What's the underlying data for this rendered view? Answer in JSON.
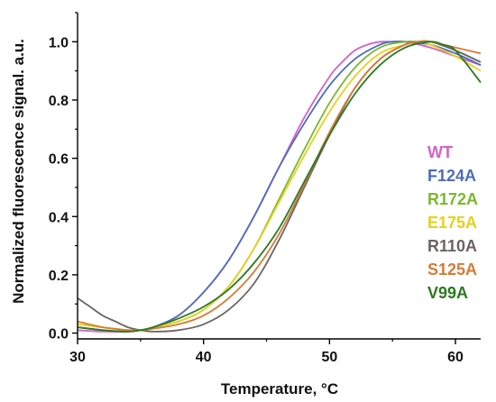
{
  "chart_data": {
    "type": "line",
    "xlabel": "Temperature, °C",
    "ylabel": "Normalized fluorescence signal. a.u.",
    "xlim": [
      30,
      62
    ],
    "ylim": [
      -0.02,
      1.1
    ],
    "x_ticks": [
      "30",
      "40",
      "50",
      "60"
    ],
    "y_ticks": [
      "0.0",
      "0.2",
      "0.4",
      "0.6",
      "0.8",
      "1.0"
    ],
    "grid": false,
    "legend_position": "right",
    "series": [
      {
        "name": "WT",
        "color": "#d362c6",
        "x": [
          30,
          32,
          34,
          35,
          36,
          38,
          40,
          42,
          44,
          46,
          48,
          50,
          51,
          52,
          53,
          54,
          55,
          56,
          58,
          60,
          62
        ],
        "y": [
          0.01,
          0.005,
          0.005,
          0.01,
          0.02,
          0.06,
          0.14,
          0.25,
          0.4,
          0.57,
          0.74,
          0.88,
          0.93,
          0.97,
          0.99,
          1.0,
          1.0,
          1.0,
          0.98,
          0.95,
          0.92
        ]
      },
      {
        "name": "F124A",
        "color": "#4f6bbd",
        "x": [
          30,
          32,
          34,
          35,
          36,
          38,
          40,
          42,
          44,
          46,
          48,
          50,
          52,
          54,
          55,
          56,
          58,
          60,
          62
        ],
        "y": [
          0.02,
          0.01,
          0.005,
          0.01,
          0.02,
          0.06,
          0.14,
          0.25,
          0.4,
          0.57,
          0.72,
          0.85,
          0.94,
          0.99,
          1.0,
          1.0,
          0.99,
          0.96,
          0.92
        ]
      },
      {
        "name": "R172A",
        "color": "#7ab82f",
        "x": [
          30,
          32,
          34,
          35,
          36,
          38,
          40,
          42,
          44,
          46,
          48,
          50,
          52,
          54,
          56,
          57,
          58,
          60,
          62
        ],
        "y": [
          0.03,
          0.02,
          0.01,
          0.01,
          0.02,
          0.04,
          0.08,
          0.16,
          0.29,
          0.46,
          0.63,
          0.79,
          0.91,
          0.98,
          1.0,
          1.0,
          1.0,
          0.97,
          0.93
        ]
      },
      {
        "name": "E175A",
        "color": "#e6d11c",
        "x": [
          30,
          32,
          34,
          35,
          36,
          38,
          40,
          42,
          44,
          46,
          48,
          50,
          52,
          54,
          56,
          57,
          58,
          60,
          62
        ],
        "y": [
          0.03,
          0.02,
          0.01,
          0.01,
          0.02,
          0.04,
          0.08,
          0.16,
          0.29,
          0.45,
          0.61,
          0.76,
          0.88,
          0.96,
          0.99,
          1.0,
          0.99,
          0.95,
          0.9
        ]
      },
      {
        "name": "R110A",
        "color": "#6b6464",
        "x": [
          30,
          31,
          32,
          33,
          34,
          35,
          36,
          38,
          40,
          42,
          44,
          46,
          48,
          50,
          52,
          54,
          56,
          57,
          58,
          60,
          62
        ],
        "y": [
          0.12,
          0.09,
          0.06,
          0.04,
          0.02,
          0.01,
          0.005,
          0.01,
          0.03,
          0.08,
          0.17,
          0.32,
          0.5,
          0.68,
          0.84,
          0.94,
          0.99,
          1.0,
          1.0,
          0.97,
          0.93
        ]
      },
      {
        "name": "S125A",
        "color": "#d77a37",
        "x": [
          30,
          32,
          34,
          35,
          36,
          38,
          40,
          42,
          44,
          46,
          48,
          50,
          52,
          54,
          56,
          57,
          58,
          60,
          62
        ],
        "y": [
          0.04,
          0.02,
          0.01,
          0.01,
          0.015,
          0.03,
          0.06,
          0.12,
          0.21,
          0.34,
          0.51,
          0.69,
          0.84,
          0.94,
          0.99,
          1.0,
          1.0,
          0.98,
          0.96
        ]
      },
      {
        "name": "V99A",
        "color": "#2a7a1e",
        "x": [
          30,
          32,
          34,
          35,
          36,
          38,
          40,
          42,
          44,
          46,
          48,
          50,
          52,
          54,
          56,
          58,
          59,
          60,
          62
        ],
        "y": [
          0.02,
          0.01,
          0.005,
          0.01,
          0.02,
          0.05,
          0.09,
          0.15,
          0.24,
          0.36,
          0.52,
          0.68,
          0.82,
          0.92,
          0.98,
          1.0,
          0.99,
          0.97,
          0.86
        ]
      }
    ]
  }
}
